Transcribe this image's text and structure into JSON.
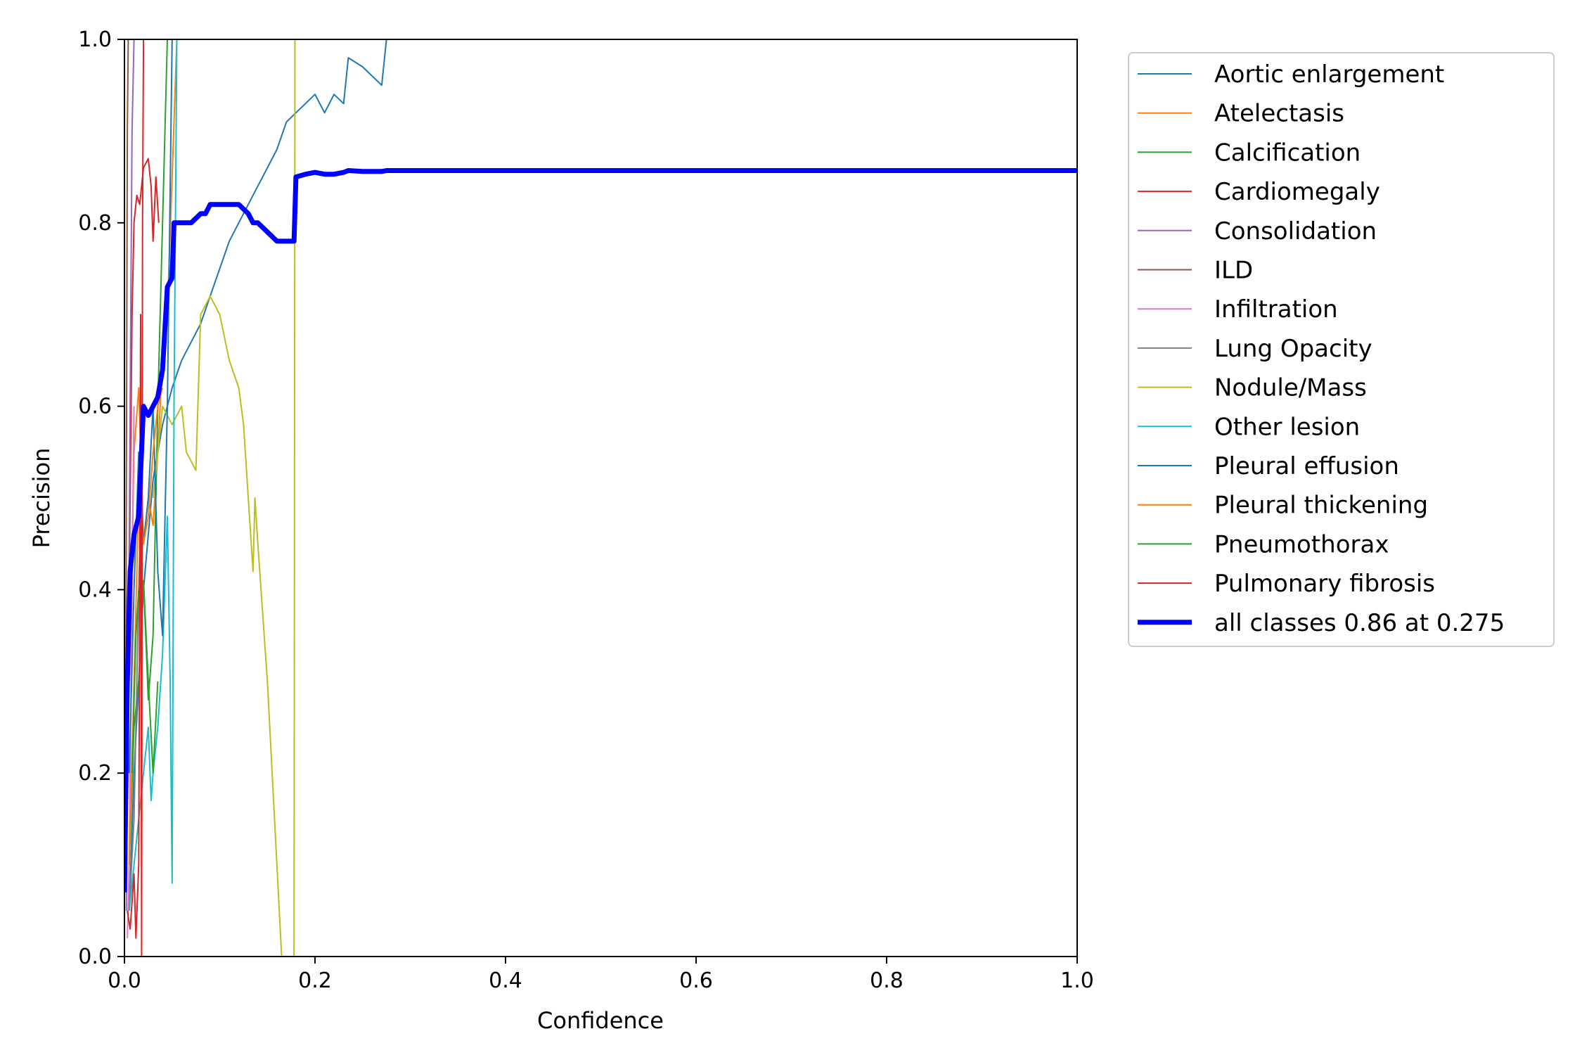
{
  "chart_data": {
    "type": "line",
    "title": "",
    "xlabel": "Confidence",
    "ylabel": "Precision",
    "xlim": [
      0,
      1
    ],
    "ylim": [
      0,
      1
    ],
    "grid": false,
    "legend_placement": "outside-right",
    "x_ticks": [
      "0.0",
      "0.2",
      "0.4",
      "0.6",
      "0.8",
      "1.0"
    ],
    "y_ticks": [
      "0.0",
      "0.2",
      "0.4",
      "0.6",
      "0.8",
      "1.0"
    ],
    "series": [
      {
        "name": "Aortic enlargement",
        "color": "#1f77b4",
        "width": 2,
        "x": [
          0.005,
          0.01,
          0.02,
          0.03,
          0.04,
          0.05,
          0.06,
          0.07,
          0.08,
          0.09,
          0.1,
          0.11,
          0.12,
          0.13,
          0.14,
          0.15,
          0.16,
          0.17,
          0.18,
          0.19,
          0.2,
          0.21,
          0.22,
          0.23,
          0.235,
          0.25,
          0.27,
          0.275
        ],
        "y": [
          0.05,
          0.2,
          0.4,
          0.52,
          0.58,
          0.62,
          0.65,
          0.67,
          0.69,
          0.72,
          0.75,
          0.78,
          0.8,
          0.82,
          0.84,
          0.86,
          0.88,
          0.91,
          0.92,
          0.93,
          0.94,
          0.92,
          0.94,
          0.93,
          0.98,
          0.97,
          0.95,
          1.0
        ]
      },
      {
        "name": "Atelectasis",
        "color": "#ff7f0e",
        "width": 2,
        "x": [
          0.005,
          0.01,
          0.015,
          0.02,
          0.025,
          0.03,
          0.035,
          0.04,
          0.045,
          0.05,
          0.055
        ],
        "y": [
          0.3,
          0.55,
          0.62,
          0.45,
          0.5,
          0.47,
          0.55,
          0.65,
          0.7,
          0.85,
          1.0
        ]
      },
      {
        "name": "Calcification",
        "color": "#2ca02c",
        "width": 2,
        "x": [
          0.005,
          0.01,
          0.015,
          0.02,
          0.025,
          0.03,
          0.035,
          0.04,
          0.045,
          0.05
        ],
        "y": [
          0.1,
          0.25,
          0.3,
          0.41,
          0.28,
          0.35,
          0.6,
          0.8,
          1.0,
          1.0
        ]
      },
      {
        "name": "Cardiomegaly",
        "color": "#d62728",
        "width": 2,
        "x": [
          0.002,
          0.005,
          0.008,
          0.01,
          0.013,
          0.016,
          0.02,
          0.025,
          0.028,
          0.03,
          0.033,
          0.036
        ],
        "y": [
          0.1,
          0.4,
          0.7,
          0.8,
          0.83,
          0.82,
          0.86,
          0.87,
          0.84,
          0.78,
          0.85,
          0.8
        ]
      },
      {
        "name": "Consolidation",
        "color": "#9467bd",
        "width": 2,
        "x": [
          0.002,
          0.004,
          0.006,
          0.008,
          0.01
        ],
        "y": [
          0.05,
          0.3,
          0.6,
          0.9,
          1.0
        ]
      },
      {
        "name": "ILD",
        "color": "#8c564b",
        "width": 2,
        "x": [
          0.001,
          0.002,
          0.003,
          0.004
        ],
        "y": [
          0.1,
          0.5,
          0.9,
          1.0
        ]
      },
      {
        "name": "Infiltration",
        "color": "#e377c2",
        "width": 2,
        "x": [
          0.003,
          0.005,
          0.008,
          0.01
        ],
        "y": [
          0.02,
          0.1,
          0.4,
          0.6
        ]
      },
      {
        "name": "Lung Opacity",
        "color": "#7f7f7f",
        "width": 2,
        "x": [
          0.005,
          0.01,
          0.015,
          0.02
        ],
        "y": [
          0.05,
          0.15,
          0.4,
          0.6
        ]
      },
      {
        "name": "Nodule/Mass",
        "color": "#bcbd22",
        "width": 2,
        "x": [
          0.03,
          0.04,
          0.05,
          0.06,
          0.065,
          0.07,
          0.075,
          0.08,
          0.09,
          0.1,
          0.11,
          0.12,
          0.125,
          0.13,
          0.135,
          0.137,
          0.14,
          0.15,
          0.16,
          0.165,
          0.178,
          0.179,
          0.18
        ],
        "y": [
          0.5,
          0.6,
          0.58,
          0.6,
          0.55,
          0.54,
          0.53,
          0.7,
          0.72,
          0.7,
          0.65,
          0.62,
          0.58,
          0.5,
          0.42,
          0.5,
          0.45,
          0.3,
          0.1,
          0.0,
          0.0,
          1.0,
          1.0
        ]
      },
      {
        "name": "Other lesion",
        "color": "#17becf",
        "width": 2,
        "x": [
          0.005,
          0.01,
          0.015,
          0.02,
          0.025,
          0.028,
          0.03,
          0.035,
          0.04,
          0.045,
          0.048,
          0.05,
          0.052,
          0.055
        ],
        "y": [
          0.05,
          0.1,
          0.15,
          0.2,
          0.25,
          0.17,
          0.2,
          0.25,
          0.33,
          0.48,
          0.3,
          0.08,
          0.6,
          1.0
        ]
      },
      {
        "name": "Pleural effusion",
        "color": "#1f77b4",
        "width": 2,
        "x": [
          0.005,
          0.01,
          0.015,
          0.02,
          0.025,
          0.03,
          0.035,
          0.04,
          0.045,
          0.05
        ],
        "y": [
          0.2,
          0.4,
          0.55,
          0.45,
          0.5,
          0.6,
          0.42,
          0.35,
          0.6,
          1.0
        ]
      },
      {
        "name": "Pleural thickening",
        "color": "#ff7f0e",
        "width": 2,
        "x": [
          0.005,
          0.01,
          0.015,
          0.02,
          0.025,
          0.03,
          0.035,
          0.04
        ],
        "y": [
          0.1,
          0.3,
          0.5,
          0.45,
          0.48,
          0.55,
          0.6,
          0.62
        ]
      },
      {
        "name": "Pneumothorax",
        "color": "#2ca02c",
        "width": 2,
        "x": [
          0.008,
          0.012,
          0.015,
          0.02,
          0.025,
          0.03,
          0.035
        ],
        "y": [
          0.2,
          0.35,
          0.4,
          0.41,
          0.3,
          0.2,
          0.3
        ]
      },
      {
        "name": "Pulmonary fibrosis",
        "color": "#d62728",
        "width": 2,
        "x": [
          0.003,
          0.006,
          0.01,
          0.012,
          0.015,
          0.016,
          0.017,
          0.018,
          0.019,
          0.02
        ],
        "y": [
          0.05,
          0.03,
          0.09,
          0.02,
          0.1,
          0.4,
          0.7,
          0.0,
          0.8,
          1.0
        ]
      },
      {
        "name": "all classes 0.86 at 0.275",
        "color": "#0000ff",
        "width": 7,
        "x": [
          0.0,
          0.003,
          0.006,
          0.01,
          0.015,
          0.02,
          0.025,
          0.03,
          0.035,
          0.04,
          0.045,
          0.05,
          0.052,
          0.055,
          0.06,
          0.065,
          0.07,
          0.08,
          0.085,
          0.09,
          0.1,
          0.11,
          0.12,
          0.13,
          0.135,
          0.14,
          0.15,
          0.16,
          0.165,
          0.17,
          0.175,
          0.178,
          0.18,
          0.19,
          0.2,
          0.21,
          0.22,
          0.23,
          0.235,
          0.25,
          0.27,
          0.275,
          0.3,
          0.4,
          0.5,
          0.6,
          0.7,
          0.8,
          0.9,
          1.0
        ],
        "y": [
          0.07,
          0.3,
          0.42,
          0.46,
          0.48,
          0.6,
          0.59,
          0.6,
          0.61,
          0.64,
          0.73,
          0.74,
          0.8,
          0.8,
          0.8,
          0.8,
          0.8,
          0.81,
          0.81,
          0.82,
          0.82,
          0.82,
          0.82,
          0.81,
          0.8,
          0.8,
          0.79,
          0.78,
          0.78,
          0.78,
          0.78,
          0.78,
          0.85,
          0.853,
          0.855,
          0.853,
          0.853,
          0.855,
          0.857,
          0.856,
          0.856,
          0.857,
          0.857,
          0.857,
          0.857,
          0.857,
          0.857,
          0.857,
          0.857,
          0.857
        ]
      }
    ]
  }
}
